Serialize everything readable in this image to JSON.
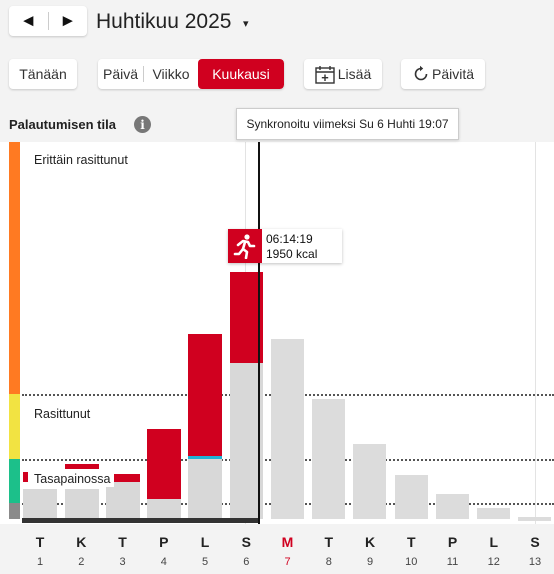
{
  "header": {
    "prev_label": "◄",
    "next_label": "►",
    "month_title": "Huhtikuu 2025",
    "month_caret": "▾"
  },
  "toolbar": {
    "today_label": "Tänään",
    "views": [
      "Päivä",
      "Viikko",
      "Kuukausi"
    ],
    "active_view": "Kuukausi",
    "add_label": "Lisää",
    "refresh_label": "Päivitä"
  },
  "recovery": {
    "title": "Palautumisen tila",
    "info_icon": "i",
    "sync_tooltip": "Synkronoitu viimeksi Su 6 Huhti 19:07",
    "zones": [
      "Erittäin rasittunut",
      "Rasittunut",
      "Tasapainossa"
    ],
    "colors": {
      "very_strained": "#ff7a22",
      "strained": "#f2e342",
      "balanced": "#1cc08a",
      "low": "#8a8a8a",
      "activity": "#d0001f",
      "forecast": "#d8d8d8"
    },
    "activity": {
      "duration": "06:14:19",
      "kcal": "1950 kcal",
      "icon": "running-icon"
    }
  },
  "days": [
    {
      "letter": "T",
      "num": "1"
    },
    {
      "letter": "K",
      "num": "2"
    },
    {
      "letter": "T",
      "num": "3"
    },
    {
      "letter": "P",
      "num": "4"
    },
    {
      "letter": "L",
      "num": "5"
    },
    {
      "letter": "S",
      "num": "6"
    },
    {
      "letter": "M",
      "num": "7"
    },
    {
      "letter": "T",
      "num": "8"
    },
    {
      "letter": "K",
      "num": "9"
    },
    {
      "letter": "T",
      "num": "10"
    },
    {
      "letter": "P",
      "num": "11"
    },
    {
      "letter": "L",
      "num": "12"
    },
    {
      "letter": "S",
      "num": "13"
    }
  ],
  "today_day": "7"
}
